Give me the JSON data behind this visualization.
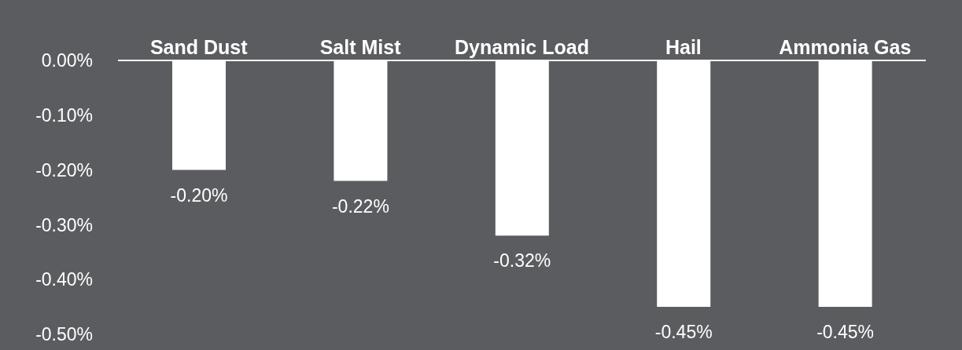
{
  "chart_data": {
    "type": "bar",
    "categories": [
      "Sand Dust",
      "Salt Mist",
      "Dynamic Load",
      "Hail",
      "Ammonia Gas"
    ],
    "series": [
      {
        "color": "#ffffff",
        "values": [
          -0.2,
          -0.22,
          -0.32,
          -0.45,
          -0.45
        ],
        "value_labels": [
          "-0.20%",
          "-0.22%",
          "-0.32%",
          "-0.45%",
          "-0.45%"
        ]
      }
    ],
    "ylim": [
      -0.5,
      0
    ],
    "yticks": [
      {
        "value": 0,
        "label": "0.00%"
      },
      {
        "value": -0.1,
        "label": "-0.10%"
      },
      {
        "value": -0.2,
        "label": "-0.20%"
      },
      {
        "value": -0.3,
        "label": "-0.30%"
      },
      {
        "value": -0.4,
        "label": "-0.40%"
      },
      {
        "value": -0.5,
        "label": "-0.50%"
      }
    ],
    "grid": false,
    "legend": false
  }
}
